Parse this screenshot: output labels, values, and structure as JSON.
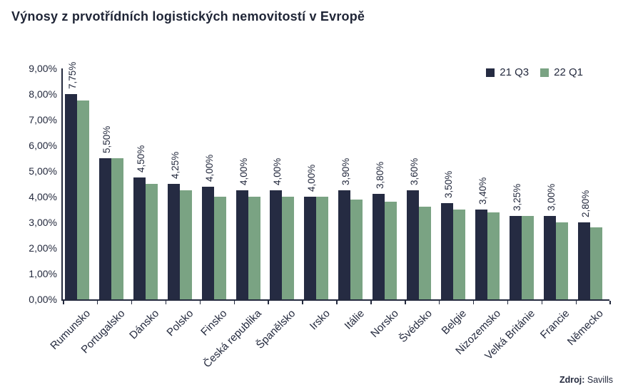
{
  "header": {
    "title": "Výnosy z prvotřídních logistických nemovitostí v Evropě"
  },
  "legend": {
    "items": [
      {
        "label": "21 Q3",
        "color": "#252b42"
      },
      {
        "label": "22 Q1",
        "color": "#7aa383"
      }
    ]
  },
  "chart_data": {
    "type": "bar",
    "title": "Výnosy z prvotřídních logistických nemovitostí v Evropě",
    "xlabel": "",
    "ylabel": "",
    "grid": false,
    "legend_position": "top-right",
    "ylim": [
      0,
      9
    ],
    "y_ticks": [
      "0,00%",
      "1,00%",
      "2,00%",
      "3,00%",
      "4,00%",
      "5,00%",
      "6,00%",
      "7,00%",
      "8,00%",
      "9,00%"
    ],
    "categories": [
      "Rumunsko",
      "Portugalsko",
      "Dánsko",
      "Polsko",
      "Finsko",
      "Česká republika",
      "Španělsko",
      "Irsko",
      "Itálie",
      "Norsko",
      "Švédsko",
      "Belgie",
      "Nizozemsko",
      "Velká Británie",
      "Francie",
      "Německo"
    ],
    "series": [
      {
        "name": "21 Q3",
        "color": "#252b42",
        "values": [
          8.0,
          5.5,
          4.75,
          4.5,
          4.4,
          4.25,
          4.25,
          4.0,
          4.25,
          4.1,
          4.25,
          3.75,
          3.5,
          3.25,
          3.25,
          3.0
        ]
      },
      {
        "name": "22 Q1",
        "color": "#7aa383",
        "values": [
          7.75,
          5.5,
          4.5,
          4.25,
          4.0,
          4.0,
          4.0,
          4.0,
          3.9,
          3.8,
          3.6,
          3.5,
          3.4,
          3.25,
          3.0,
          2.8
        ]
      }
    ],
    "data_labels": [
      "7,75%",
      "5,50%",
      "4,50%",
      "4,25%",
      "4,00%",
      "4,00%",
      "4,00%",
      "4,00%",
      "3,90%",
      "3,80%",
      "3,60%",
      "3,50%",
      "3,40%",
      "3,25%",
      "3,00%",
      "2,80%"
    ]
  },
  "source": {
    "prefix": "Zdroj:",
    "text": " Savills"
  }
}
